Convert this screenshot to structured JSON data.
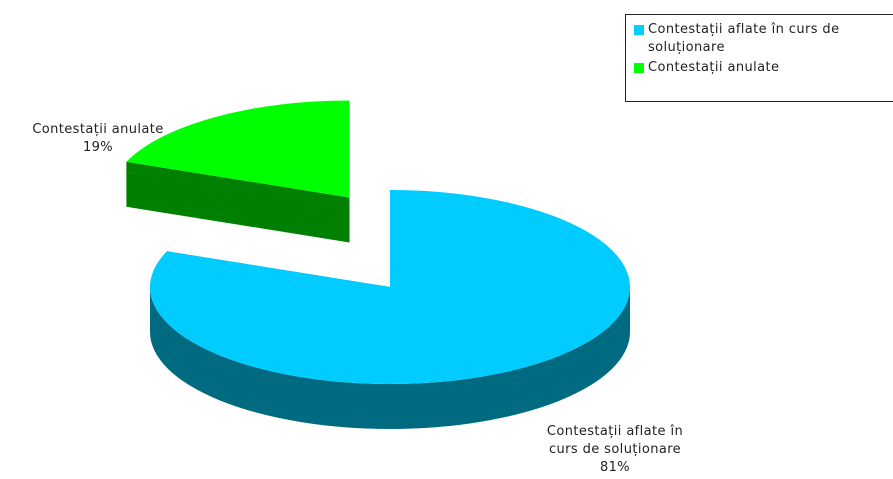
{
  "chart_data": {
    "type": "pie",
    "title": "",
    "three_d": true,
    "exploded": true,
    "slices": [
      {
        "label": "Contestații aflate în curs de soluționare",
        "value": 81,
        "percent_label": "81%",
        "color": "#00ccff",
        "side_color": "#006b80"
      },
      {
        "label": "Contestații anulate",
        "value": 19,
        "percent_label": "19%",
        "color": "#00ff00",
        "side_color": "#008000"
      }
    ],
    "legend": {
      "position": "top-right",
      "items": [
        {
          "text": "Contestații aflate în curs de\nsoluționare",
          "color": "#00ccff"
        },
        {
          "text": "Contestații anulate",
          "color": "#00ff00"
        }
      ]
    },
    "data_labels": [
      {
        "name": "Contestații aflate în\ncurs de soluționare",
        "percent": "81%"
      },
      {
        "name": "Contestații anulate",
        "percent": "19%"
      }
    ]
  }
}
